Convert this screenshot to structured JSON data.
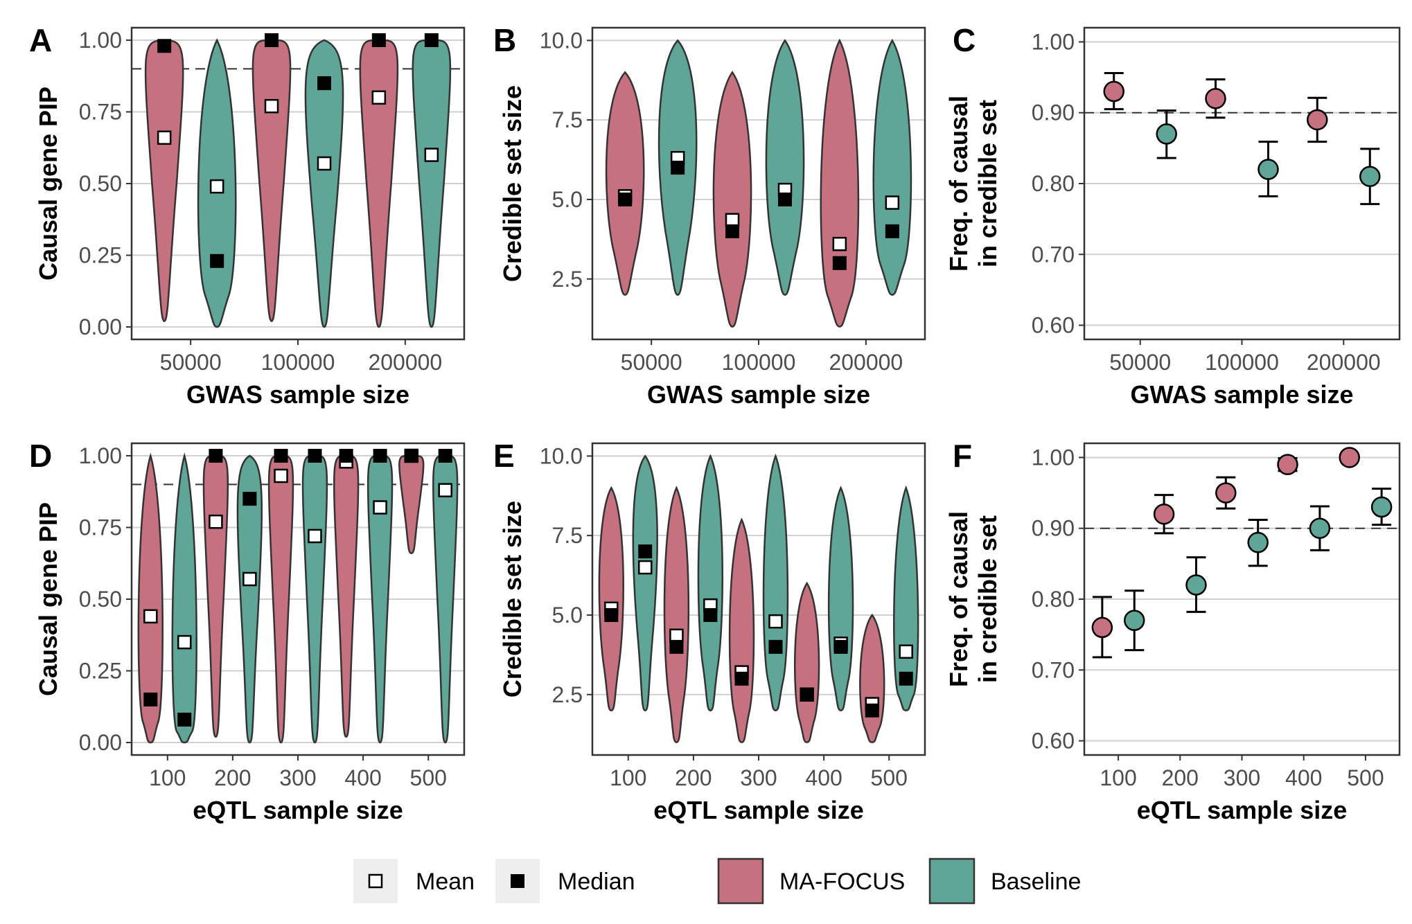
{
  "legend": {
    "mean_label": "Mean",
    "median_label": "Median",
    "mafocus_label": "MA-FOCUS",
    "baseline_label": "Baseline"
  },
  "colors": {
    "mafocus": "#c5717f",
    "baseline": "#5fa598",
    "outline": "#333333",
    "grid": "#cfcfcf",
    "panel_border": "#333333"
  },
  "chart_data": [
    {
      "panel": "A",
      "type": "violin",
      "xlabel": "GWAS sample size",
      "ylabel": "Causal gene PIP",
      "categories": [
        "50000",
        "100000",
        "200000"
      ],
      "ylim": [
        0,
        1
      ],
      "yticks": [
        "0.00",
        "0.25",
        "0.50",
        "0.75",
        "1.00"
      ],
      "yticks_values": [
        0,
        0.25,
        0.5,
        0.75,
        1.0
      ],
      "reference_line": 0.9,
      "grid": true,
      "series": [
        {
          "name": "MA-FOCUS",
          "mean": [
            0.66,
            0.77,
            0.8
          ],
          "median": [
            0.98,
            1.0,
            1.0
          ],
          "range": [
            [
              0.02,
              1.0
            ],
            [
              0.02,
              1.0
            ],
            [
              0.0,
              1.0
            ]
          ]
        },
        {
          "name": "Baseline",
          "mean": [
            0.49,
            0.57,
            0.6
          ],
          "median": [
            0.23,
            0.85,
            1.0
          ],
          "range": [
            [
              0.0,
              1.0
            ],
            [
              0.0,
              1.0
            ],
            [
              0.0,
              1.0
            ]
          ]
        }
      ]
    },
    {
      "panel": "B",
      "type": "violin",
      "xlabel": "GWAS sample size",
      "ylabel": "Credible set size",
      "categories": [
        "50000",
        "100000",
        "200000"
      ],
      "ylim": [
        0.6,
        10.4
      ],
      "yticks": [
        "2.5",
        "5.0",
        "7.5",
        "10.0"
      ],
      "yticks_values": [
        2.5,
        5.0,
        7.5,
        10.0
      ],
      "grid": true,
      "series": [
        {
          "name": "MA-FOCUS",
          "mean": [
            5.1,
            4.35,
            3.6
          ],
          "median": [
            5,
            4,
            3
          ],
          "range": [
            [
              2,
              9
            ],
            [
              1,
              9
            ],
            [
              1,
              10
            ]
          ]
        },
        {
          "name": "Baseline",
          "mean": [
            6.3,
            5.3,
            4.9
          ],
          "median": [
            6,
            5,
            4
          ],
          "range": [
            [
              2,
              10
            ],
            [
              2,
              10
            ],
            [
              2,
              10
            ]
          ]
        }
      ]
    },
    {
      "panel": "C",
      "type": "errorbar",
      "xlabel": "GWAS sample size",
      "ylabel": "Freq. of causal\nin credible set",
      "ylabel_lines": [
        "Freq. of causal",
        "in credible set"
      ],
      "categories": [
        "50000",
        "100000",
        "200000"
      ],
      "ylim": [
        0.58,
        1.02
      ],
      "yticks": [
        "0.60",
        "0.70",
        "0.80",
        "0.90",
        "1.00"
      ],
      "yticks_values": [
        0.6,
        0.7,
        0.8,
        0.9,
        1.0
      ],
      "reference_line": 0.9,
      "grid": true,
      "series": [
        {
          "name": "MA-FOCUS",
          "values": [
            0.93,
            0.92,
            0.89
          ],
          "lower": [
            0.905,
            0.893,
            0.859
          ],
          "upper": [
            0.956,
            0.947,
            0.921
          ]
        },
        {
          "name": "Baseline",
          "values": [
            0.87,
            0.82,
            0.81
          ],
          "lower": [
            0.836,
            0.782,
            0.771
          ],
          "upper": [
            0.903,
            0.859,
            0.849
          ]
        }
      ]
    },
    {
      "panel": "D",
      "type": "violin",
      "xlabel": "eQTL sample size",
      "ylabel": "Causal gene PIP",
      "categories": [
        "100",
        "200",
        "300",
        "400",
        "500"
      ],
      "ylim": [
        0,
        1
      ],
      "yticks": [
        "0.00",
        "0.25",
        "0.50",
        "0.75",
        "1.00"
      ],
      "yticks_values": [
        0,
        0.25,
        0.5,
        0.75,
        1.0
      ],
      "reference_line": 0.9,
      "grid": true,
      "series": [
        {
          "name": "MA-FOCUS",
          "mean": [
            0.44,
            0.77,
            0.93,
            0.98,
            1.0
          ],
          "median": [
            0.15,
            1.0,
            1.0,
            1.0,
            1.0
          ],
          "range": [
            [
              0.0,
              1.0
            ],
            [
              0.02,
              1.0
            ],
            [
              0.0,
              1.0
            ],
            [
              0.02,
              1.0
            ],
            [
              0.66,
              1.0
            ]
          ]
        },
        {
          "name": "Baseline",
          "mean": [
            0.35,
            0.57,
            0.72,
            0.82,
            0.88
          ],
          "median": [
            0.08,
            0.85,
            1.0,
            1.0,
            1.0
          ],
          "range": [
            [
              0.0,
              1.0
            ],
            [
              0.0,
              1.0
            ],
            [
              0.0,
              1.0
            ],
            [
              0.0,
              1.0
            ],
            [
              0.0,
              1.0
            ]
          ]
        }
      ]
    },
    {
      "panel": "E",
      "type": "violin",
      "xlabel": "eQTL sample size",
      "ylabel": "Credible set size",
      "categories": [
        "100",
        "200",
        "300",
        "400",
        "500"
      ],
      "ylim": [
        0.6,
        10.4
      ],
      "yticks": [
        "2.5",
        "5.0",
        "7.5",
        "10.0"
      ],
      "yticks_values": [
        2.5,
        5.0,
        7.5,
        10.0
      ],
      "grid": true,
      "series": [
        {
          "name": "MA-FOCUS",
          "mean": [
            5.2,
            4.35,
            3.2,
            2.5,
            2.2
          ],
          "median": [
            5,
            4,
            3,
            2.5,
            2
          ],
          "range": [
            [
              2,
              9
            ],
            [
              1,
              9
            ],
            [
              1,
              8
            ],
            [
              1,
              6
            ],
            [
              1,
              5
            ]
          ]
        },
        {
          "name": "Baseline",
          "mean": [
            6.5,
            5.3,
            4.8,
            4.1,
            3.85
          ],
          "median": [
            7,
            5,
            4,
            4,
            3
          ],
          "range": [
            [
              2,
              10
            ],
            [
              2,
              10
            ],
            [
              2,
              10
            ],
            [
              2,
              9
            ],
            [
              2,
              9
            ]
          ]
        }
      ]
    },
    {
      "panel": "F",
      "type": "errorbar",
      "xlabel": "eQTL sample size",
      "ylabel": "Freq. of causal\nin credible set",
      "ylabel_lines": [
        "Freq. of causal",
        "in credible set"
      ],
      "categories": [
        "100",
        "200",
        "300",
        "400",
        "500"
      ],
      "ylim": [
        0.58,
        1.02
      ],
      "yticks": [
        "0.60",
        "0.70",
        "0.80",
        "0.90",
        "1.00"
      ],
      "yticks_values": [
        0.6,
        0.7,
        0.8,
        0.9,
        1.0
      ],
      "reference_line": 0.9,
      "grid": true,
      "series": [
        {
          "name": "MA-FOCUS",
          "values": [
            0.76,
            0.92,
            0.95,
            0.99,
            1.0
          ],
          "lower": [
            0.718,
            0.893,
            0.928,
            0.981,
            1.0
          ],
          "upper": [
            0.803,
            0.947,
            0.972,
            0.999,
            1.0
          ]
        },
        {
          "name": "Baseline",
          "values": [
            0.77,
            0.82,
            0.88,
            0.9,
            0.93
          ],
          "lower": [
            0.728,
            0.782,
            0.847,
            0.869,
            0.905
          ],
          "upper": [
            0.812,
            0.859,
            0.912,
            0.931,
            0.956
          ]
        }
      ]
    }
  ]
}
